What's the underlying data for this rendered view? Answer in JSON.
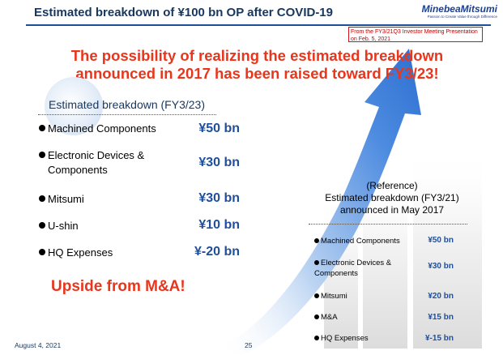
{
  "header": {
    "title": "Estimated breakdown of ¥100 bn OP after COVID-19",
    "logo_name": "MinebeaMitsumi",
    "logo_tagline": "Passion to Create Value through Difference",
    "source_note": "From the FY3/21Q3 Investor Meeting Presentation on Feb. 5, 2021"
  },
  "headline": {
    "line1": "The possibility of realizing the estimated breakdown",
    "line2": "announced in 2017 has been raised toward FY3/23!"
  },
  "current_estimate": {
    "title": "Estimated breakdown (FY3/23)",
    "items": [
      {
        "label": "Machined Components",
        "value": "¥50 bn"
      },
      {
        "label": "Electronic Devices &",
        "label2": "Components",
        "value": "¥30 bn"
      },
      {
        "label": "Mitsumi",
        "value": "¥30 bn"
      },
      {
        "label": "U-shin",
        "value": "¥10 bn"
      },
      {
        "label": "HQ Expenses",
        "value": "¥-20 bn"
      }
    ]
  },
  "upside": "Upside from M&A!",
  "reference": {
    "label": "(Reference)",
    "title": "Estimated breakdown (FY3/21)",
    "subtitle": "announced in May 2017",
    "items": [
      {
        "label": "Machined Components",
        "value": "¥50 bn"
      },
      {
        "label": "Electronic Devices &",
        "label2": "Components",
        "value": "¥30 bn"
      },
      {
        "label": "Mitsumi",
        "value": "¥20 bn"
      },
      {
        "label": "M&A",
        "value": "¥15 bn"
      },
      {
        "label": "HQ Expenses",
        "value": "¥-15 bn"
      }
    ]
  },
  "footer": {
    "date": "August 4, 2021",
    "page": "25"
  },
  "colors": {
    "title": "#17375e",
    "accent_red": "#e8361d",
    "value_blue": "#1f4e9a",
    "arrow_blue": "#3a7bd5"
  },
  "icons": [
    "growth-arrow",
    "bullet-dot"
  ]
}
